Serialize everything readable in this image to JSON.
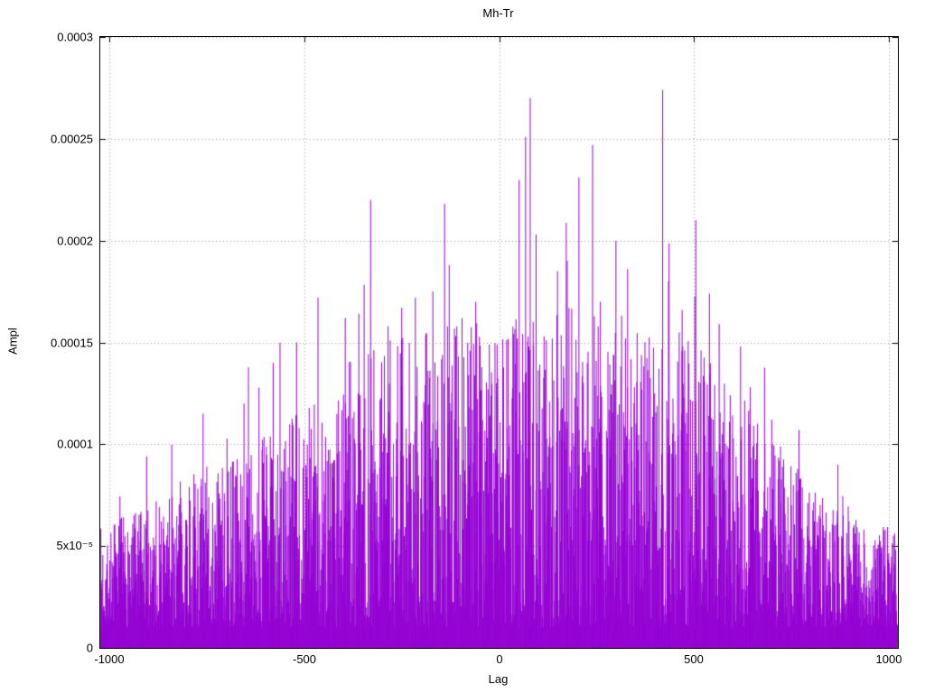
{
  "chart_data": {
    "type": "impulse",
    "title": "Mh-Tr",
    "xlabel": "Lag",
    "ylabel": "Ampl",
    "series_color": "#9400d3",
    "grid_color": "#9a9a9a",
    "axis_color": "#000000",
    "background_color": "#ffffff",
    "grid": "dotted",
    "legend": "none",
    "xlim": [
      -1024,
      1024
    ],
    "ylim": [
      0,
      0.0003
    ],
    "xticks": [
      {
        "v": -1000,
        "label": "-1000"
      },
      {
        "v": -500,
        "label": "-500"
      },
      {
        "v": 0,
        "label": "0"
      },
      {
        "v": 500,
        "label": "500"
      },
      {
        "v": 1000,
        "label": "1000"
      }
    ],
    "yticks": [
      {
        "v": 0,
        "label": "0"
      },
      {
        "v": 5e-05,
        "label": "5x10⁻⁵"
      },
      {
        "v": 0.0001,
        "label": "0.0001"
      },
      {
        "v": 0.00015,
        "label": "0.00015"
      },
      {
        "v": 0.0002,
        "label": "0.0002"
      },
      {
        "v": 0.00025,
        "label": "0.00025"
      },
      {
        "v": 0.0003,
        "label": "0.0003"
      }
    ],
    "n_points": 2048,
    "seed": 7,
    "noise_floor": 1e-05,
    "envelope": [
      [
        -1024,
        6e-05
      ],
      [
        -900,
        7e-05
      ],
      [
        -800,
        8.5e-05
      ],
      [
        -700,
        9.5e-05
      ],
      [
        -600,
        0.000105
      ],
      [
        -500,
        0.00012
      ],
      [
        -400,
        0.00014
      ],
      [
        -300,
        0.00015
      ],
      [
        -200,
        0.000155
      ],
      [
        -100,
        0.00016
      ],
      [
        0,
        0.00016
      ],
      [
        100,
        0.000165
      ],
      [
        200,
        0.00017
      ],
      [
        300,
        0.000165
      ],
      [
        400,
        0.00016
      ],
      [
        500,
        0.000155
      ],
      [
        600,
        0.00013
      ],
      [
        700,
        0.000105
      ],
      [
        800,
        8e-05
      ],
      [
        900,
        6.5e-05
      ],
      [
        1024,
        6e-05
      ]
    ],
    "notable_peaks": [
      [
        -905,
        9.4e-05
      ],
      [
        -760,
        0.000115
      ],
      [
        -655,
        0.00012
      ],
      [
        -580,
        0.00014
      ],
      [
        -520,
        0.00015
      ],
      [
        -465,
        0.000172
      ],
      [
        -395,
        0.000162
      ],
      [
        -360,
        0.000164
      ],
      [
        -330,
        0.00022
      ],
      [
        -285,
        0.000158
      ],
      [
        -250,
        0.000167
      ],
      [
        -215,
        0.000172
      ],
      [
        -170,
        0.000175
      ],
      [
        -140,
        0.000218
      ],
      [
        -128,
        0.000188
      ],
      [
        -95,
        0.000162
      ],
      [
        -60,
        0.00017
      ],
      [
        -25,
        0.000149
      ],
      [
        -5,
        0.000149
      ],
      [
        68,
        0.000251
      ],
      [
        80,
        0.00027
      ],
      [
        95,
        0.000203
      ],
      [
        150,
        0.000185
      ],
      [
        175,
        0.00019
      ],
      [
        205,
        0.000231
      ],
      [
        240,
        0.000247
      ],
      [
        260,
        0.00017
      ],
      [
        300,
        0.0002
      ],
      [
        330,
        0.000186
      ],
      [
        420,
        0.000274
      ],
      [
        435,
        0.00018
      ],
      [
        470,
        0.000166
      ],
      [
        505,
        0.00021
      ],
      [
        540,
        0.000174
      ],
      [
        565,
        0.000159
      ],
      [
        620,
        0.000148
      ],
      [
        645,
        0.000128
      ],
      [
        700,
        0.000112
      ],
      [
        770,
        0.000107
      ],
      [
        870,
        9e-05
      ]
    ]
  }
}
